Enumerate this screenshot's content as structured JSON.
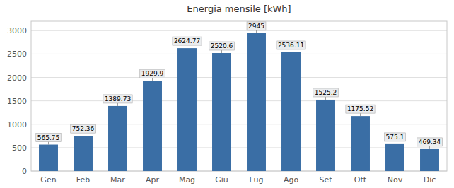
{
  "chart_data": {
    "type": "bar",
    "title": "Energia mensile [kWh]",
    "categories": [
      "Gen",
      "Feb",
      "Mar",
      "Apr",
      "Mag",
      "Giu",
      "Lug",
      "Ago",
      "Set",
      "Ott",
      "Nov",
      "Dic"
    ],
    "values": [
      565.75,
      752.36,
      1389.73,
      1929.9,
      2624.77,
      2520.6,
      2945,
      2536.11,
      1525.2,
      1175.52,
      575.1,
      469.34
    ],
    "color": "#3A6EA5",
    "ylim": [
      0,
      3200
    ],
    "yticks": [
      0,
      500,
      1000,
      1500,
      2000,
      2500,
      3000
    ],
    "grid": true,
    "data_labels": true
  }
}
